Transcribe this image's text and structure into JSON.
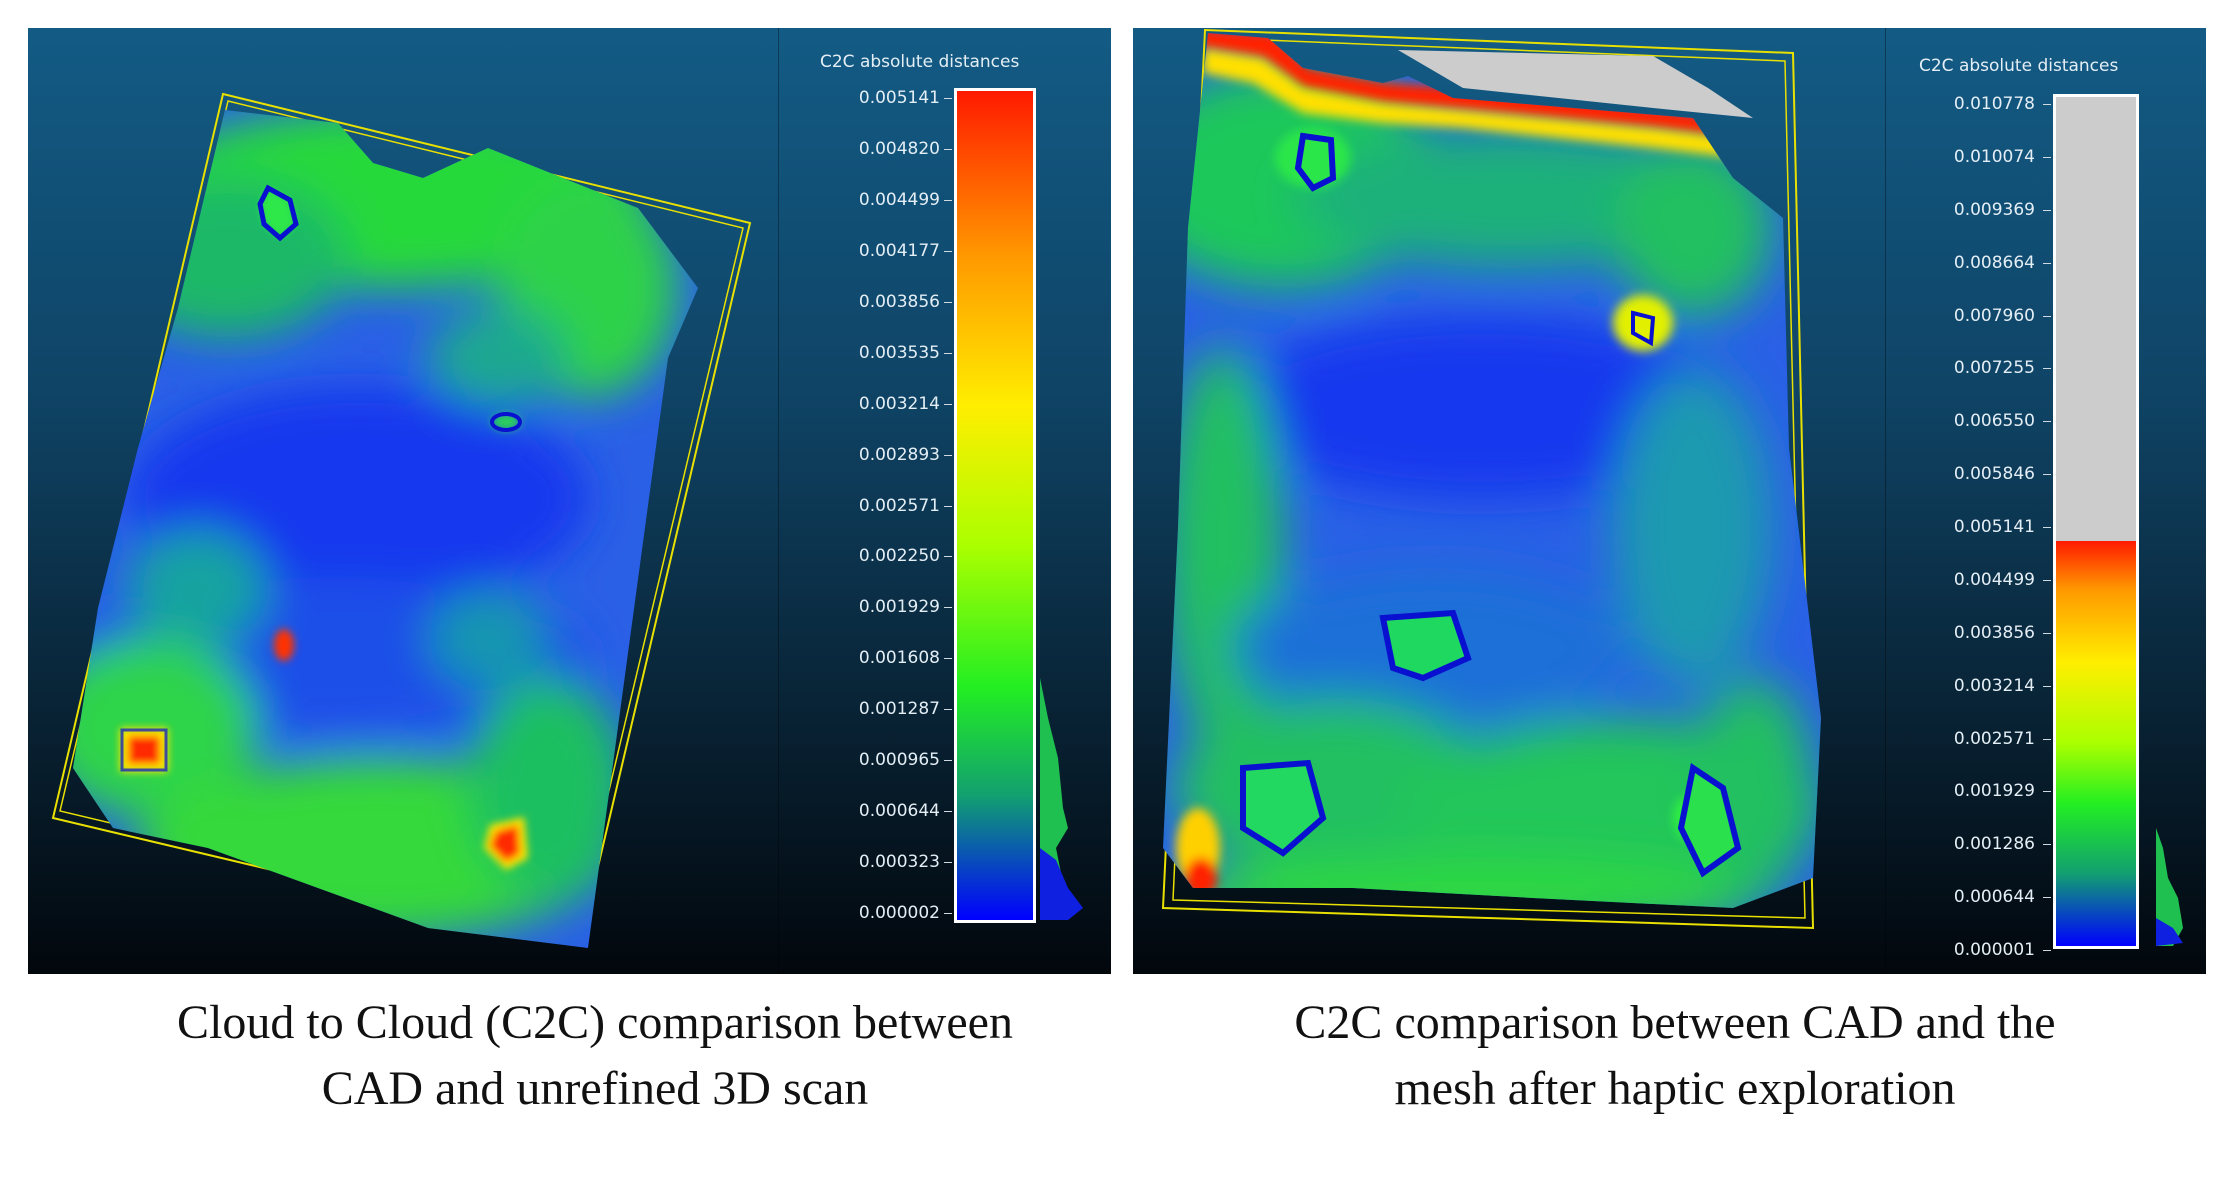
{
  "panels": [
    {
      "id": "left",
      "scale_title": "C2C absolute distances",
      "ticks": [
        "0.005141",
        "0.004820",
        "0.004499",
        "0.004177",
        "0.003856",
        "0.003535",
        "0.003214",
        "0.002893",
        "0.002571",
        "0.002250",
        "0.001929",
        "0.001608",
        "0.001287",
        "0.000965",
        "0.000644",
        "0.000323",
        "0.000002"
      ],
      "caption": "Cloud to Cloud (C2C) comparison between CAD and unrefined 3D scan"
    },
    {
      "id": "right",
      "scale_title": "C2C absolute distances",
      "ticks": [
        "0.010778",
        "0.010074",
        "0.009369",
        "0.008664",
        "0.007960",
        "0.007255",
        "0.006550",
        "0.005846",
        "0.005141",
        "0.004499",
        "0.003856",
        "0.003214",
        "0.002571",
        "0.001929",
        "0.001286",
        "0.000644",
        "0.000001"
      ],
      "caption": "C2C comparison between CAD and the mesh after haptic exploration"
    }
  ],
  "colors": {
    "scale_max": "#ff1a00",
    "scale_high": "#ffee00",
    "scale_mid": "#22ee22",
    "scale_low": "#0000ff",
    "out_of_range": "#cccccc",
    "bounding_box": "#e8e000"
  },
  "right_colored_fraction": 0.477
}
